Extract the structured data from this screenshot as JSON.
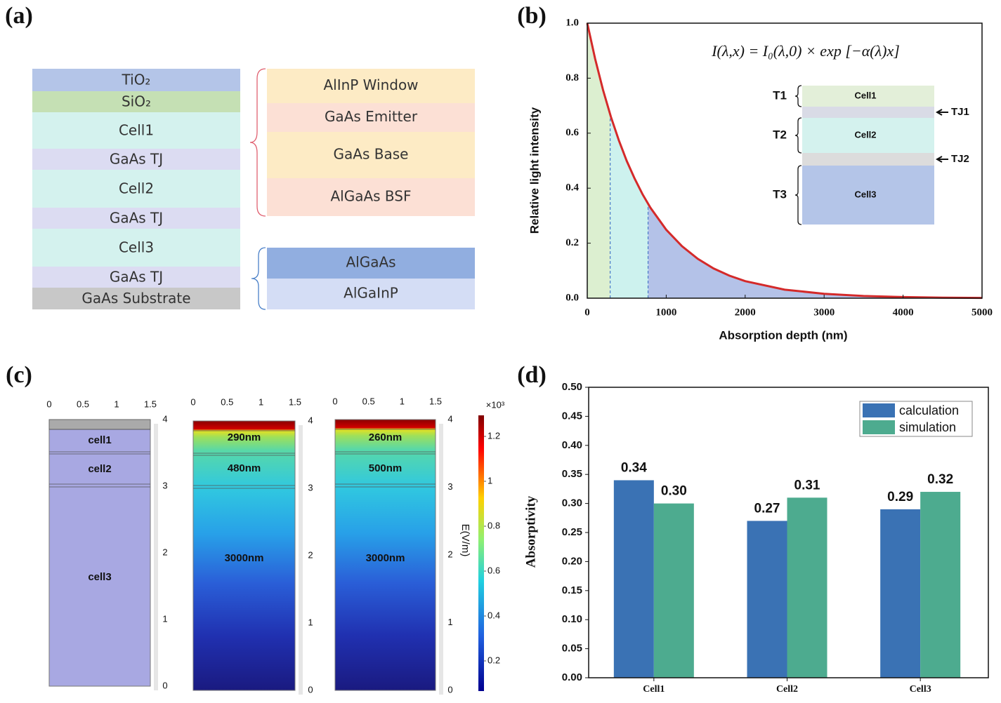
{
  "panel_labels": [
    "(a)",
    "(b)",
    "(c)",
    "(d)"
  ],
  "panel_a": {
    "stack": [
      {
        "label": "TiO₂",
        "color": "#b4c5e8"
      },
      {
        "label": "SiO₂",
        "color": "#c5e0b4"
      },
      {
        "label": "Cell1",
        "color": "#d4f2ee"
      },
      {
        "label": "GaAs TJ",
        "color": "#dcdcf2"
      },
      {
        "label": "Cell2",
        "color": "#d4f2ee"
      },
      {
        "label": "GaAs TJ",
        "color": "#dcdcf2"
      },
      {
        "label": "Cell3",
        "color": "#d4f2ee"
      },
      {
        "label": "GaAs TJ",
        "color": "#dcdcf2"
      },
      {
        "label": "GaAs Substrate",
        "color": "#c8c8c8"
      }
    ],
    "cell_layers": [
      {
        "label": "AlInP Window",
        "color": "#fdebc5"
      },
      {
        "label": "GaAs Emitter",
        "color": "#fce0d5"
      },
      {
        "label": "GaAs Base",
        "color": "#fdebc5"
      },
      {
        "label": "AlGaAs BSF",
        "color": "#fce0d5"
      }
    ],
    "tj_layers": [
      {
        "label": "AlGaAs",
        "color": "#91aee0"
      },
      {
        "label": "AlGaInP",
        "color": "#d4ddf5"
      }
    ]
  },
  "panel_c": {
    "x_ticks": [
      0,
      0.5,
      1,
      1.5
    ],
    "y_ticks": [
      4,
      3,
      2,
      1,
      0
    ],
    "columns": [
      [
        "cell1",
        "cell2",
        "cell3"
      ],
      [
        "290nm",
        "480nm",
        "3000nm"
      ],
      [
        "260nm",
        "500nm",
        "3000nm"
      ]
    ],
    "colorbar": {
      "multiplier": "×10³",
      "label": "E(V/m)",
      "ticks": [
        0.2,
        0.4,
        0.6,
        0.8,
        1,
        1.2
      ]
    }
  },
  "chart_data": [
    {
      "type": "line",
      "ylabel": "Relative light intensity",
      "xlabel": "Absorption depth (nm)",
      "annotation": "I(λ,x) = I₀(λ,0) × exp [−α(λ)x]",
      "x": [
        0,
        100,
        200,
        300,
        400,
        500,
        600,
        700,
        800,
        1000,
        1200,
        1400,
        1600,
        1800,
        2000,
        2500,
        3000,
        3500,
        4000,
        4500,
        5000
      ],
      "values": [
        1,
        0.87,
        0.757,
        0.659,
        0.574,
        0.499,
        0.435,
        0.378,
        0.329,
        0.249,
        0.189,
        0.143,
        0.108,
        0.082,
        0.062,
        0.031,
        0.016,
        0.008,
        0.004,
        0.002,
        0.001
      ],
      "color": "#d42a2a",
      "xlim": [
        0,
        5000
      ],
      "ylim": [
        0,
        1
      ],
      "xticks": [
        0,
        1000,
        2000,
        3000,
        4000,
        5000
      ],
      "yticks": [
        {
          "value": 0,
          "label": "0.0"
        },
        0.2,
        0.4,
        0.6,
        0.8,
        {
          "value": 1,
          "label": "1.0"
        }
      ],
      "region_bounds": [
        290,
        770
      ],
      "region_colors": [
        "#dcefd0",
        "#cdf2ee",
        "#b4c2e8"
      ],
      "inset": {
        "groups": [
          "T1",
          "T2",
          "T3"
        ],
        "layers": [
          {
            "label": "Cell1",
            "color": "#e3efd9"
          },
          {
            "label": "TJ1",
            "color": "#d9dbe6"
          },
          {
            "label": "Cell2",
            "color": "#d4f2ee"
          },
          {
            "label": "TJ2",
            "color": "#dcdcdc"
          },
          {
            "label": "Cell3",
            "color": "#b4c5e8"
          }
        ]
      }
    },
    {
      "type": "bar",
      "ylabel": "Absorptivity",
      "categories": [
        "Cell1",
        "Cell2",
        "Cell3"
      ],
      "series": [
        {
          "name": "calculation",
          "color": "#3a72b4",
          "values": [
            0.34,
            0.27,
            0.29
          ]
        },
        {
          "name": "simulation",
          "color": "#4dab8f",
          "values": [
            0.3,
            0.31,
            0.32
          ],
          "value_labels": [
            "0.30",
            "0.31",
            "0.32"
          ]
        }
      ],
      "ylim": [
        0,
        0.5
      ],
      "yticks": [
        {
          "value": 0,
          "label": "0.00"
        },
        0.05,
        {
          "value": 0.1,
          "label": "0.10"
        },
        0.15,
        {
          "value": 0.2,
          "label": "0.20"
        },
        0.25,
        {
          "value": 0.3,
          "label": "0.30"
        },
        0.35,
        {
          "value": 0.4,
          "label": "0.40"
        },
        0.45,
        {
          "value": 0.5,
          "label": "0.50"
        }
      ],
      "legend": "upper right"
    }
  ]
}
